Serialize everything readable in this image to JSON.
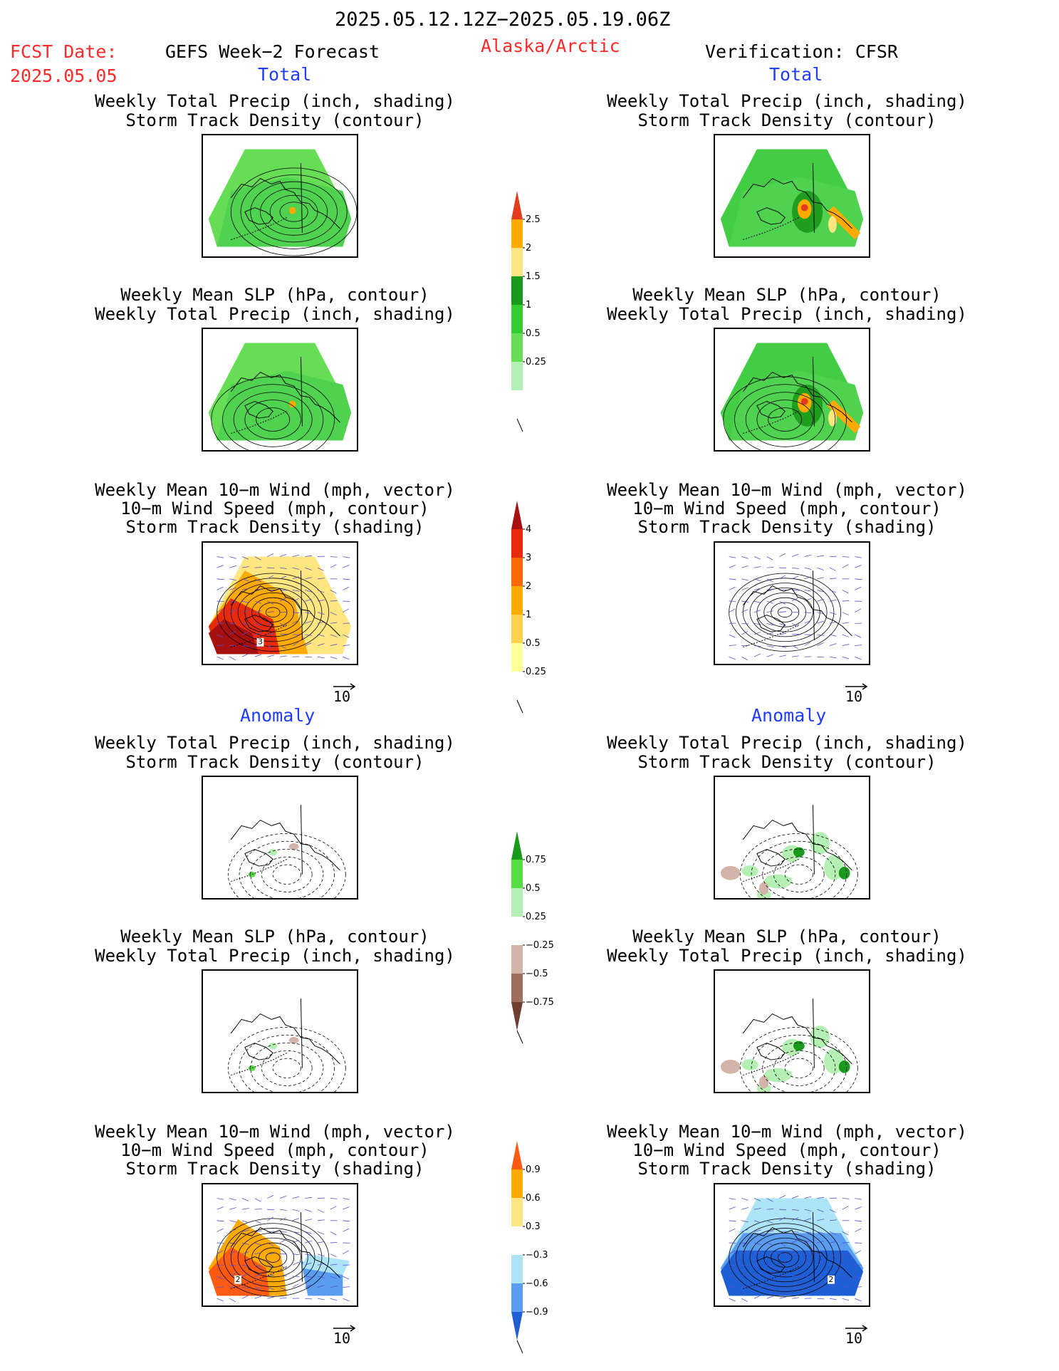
{
  "header": {
    "period": "2025.05.12.12Z−2025.05.19.06Z",
    "fcst_label": "FCST Date:",
    "fcst_date": "2025.05.05",
    "model": "GEFS Week−2 Forecast",
    "region": "Alaska/Arctic",
    "verification": "Verification: CFSR"
  },
  "sections": {
    "total": "Total",
    "anomaly": "Anomaly"
  },
  "titles": {
    "precip_track": [
      "Weekly Total Precip (inch, shading)",
      "Storm Track Density (contour)"
    ],
    "slp_precip": [
      "Weekly Mean SLP (hPa, contour)",
      "Weekly Total Precip (inch, shading)"
    ],
    "wind_track": [
      "Weekly Mean 10−m Wind (mph, vector)",
      "10−m Wind Speed (mph, contour)",
      "Storm Track Density (shading)"
    ]
  },
  "vector_ref": "10",
  "colors": {
    "title": "#ff2a2a",
    "section": "#1f3cff"
  },
  "chart_data": [
    {
      "type": "heatmap",
      "name": "precip_total_colorbar",
      "units": "inch",
      "levels": [
        "0.25",
        "0.5",
        "1",
        "1.5",
        "2",
        "2.5"
      ],
      "colors": [
        "#ffffff",
        "#b4f0b4",
        "#66dd55",
        "#33cc33",
        "#1a9a1a",
        "#ffe680",
        "#ffaa00",
        "#e63c1e"
      ]
    },
    {
      "type": "heatmap",
      "name": "storm_track_total_colorbar",
      "levels": [
        "0.25",
        "0.5",
        "1",
        "2",
        "3",
        "4"
      ],
      "colors": [
        "#ffffff",
        "#ffff99",
        "#ffd24d",
        "#ffaa00",
        "#ff6a00",
        "#e62a0a",
        "#a80f0f"
      ]
    },
    {
      "type": "heatmap",
      "name": "precip_anomaly_colorbar",
      "units": "inch",
      "levels": [
        "−0.75",
        "−0.5",
        "−0.25",
        "0.25",
        "0.5",
        "0.75"
      ],
      "colors": [
        "#6e4032",
        "#a06e5e",
        "#d2b4a8",
        "#ffffff",
        "#b4f0b4",
        "#55dd44",
        "#1a9a1a"
      ]
    },
    {
      "type": "heatmap",
      "name": "storm_track_anomaly_colorbar",
      "levels": [
        "−0.9",
        "−0.6",
        "−0.3",
        "0.3",
        "0.6",
        "0.9"
      ],
      "colors": [
        "#1f5fd6",
        "#5a9cf0",
        "#aee4f8",
        "#ffffff",
        "#ffe680",
        "#ffaa00",
        "#ff5a14"
      ]
    },
    {
      "type": "heatmap",
      "name": "map_panels",
      "panels": [
        {
          "section": "Total",
          "column": "GEFS Week−2 Forecast",
          "title": "precip_track"
        },
        {
          "section": "Total",
          "column": "Verification: CFSR",
          "title": "precip_track"
        },
        {
          "section": "Total",
          "column": "GEFS Week−2 Forecast",
          "title": "slp_precip"
        },
        {
          "section": "Total",
          "column": "Verification: CFSR",
          "title": "slp_precip"
        },
        {
          "section": "Total",
          "column": "GEFS Week−2 Forecast",
          "title": "wind_track",
          "contour_label": "3"
        },
        {
          "section": "Total",
          "column": "Verification: CFSR",
          "title": "wind_track"
        },
        {
          "section": "Anomaly",
          "column": "GEFS Week−2 Forecast",
          "title": "precip_track"
        },
        {
          "section": "Anomaly",
          "column": "Verification: CFSR",
          "title": "precip_track"
        },
        {
          "section": "Anomaly",
          "column": "GEFS Week−2 Forecast",
          "title": "slp_precip"
        },
        {
          "section": "Anomaly",
          "column": "Verification: CFSR",
          "title": "slp_precip"
        },
        {
          "section": "Anomaly",
          "column": "GEFS Week−2 Forecast",
          "title": "wind_track",
          "contour_label": "2"
        },
        {
          "section": "Anomaly",
          "column": "Verification: CFSR",
          "title": "wind_track",
          "contour_label": "2"
        }
      ]
    }
  ]
}
